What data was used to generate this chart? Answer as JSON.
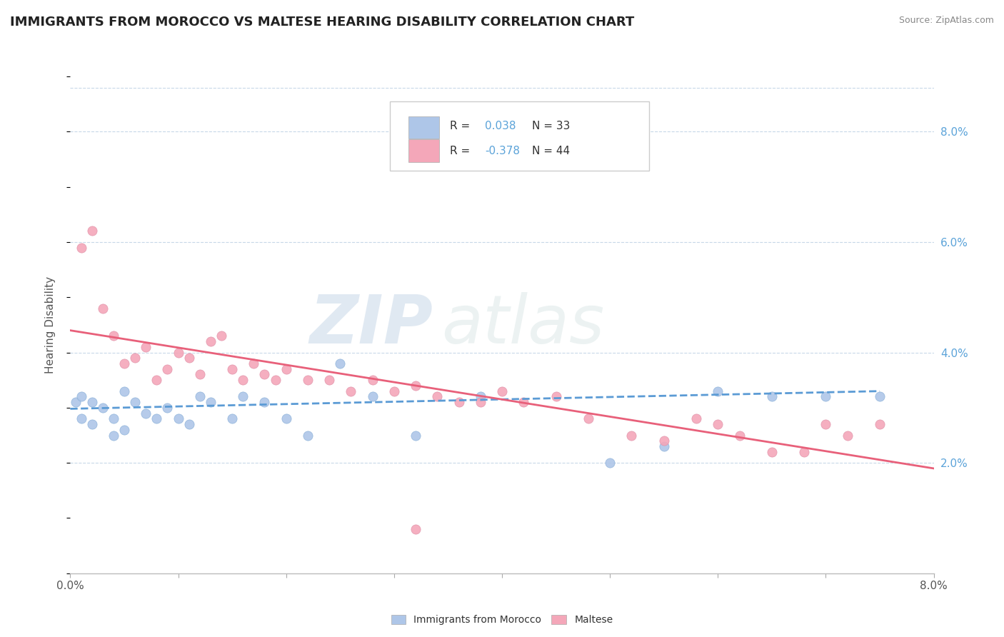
{
  "title": "IMMIGRANTS FROM MOROCCO VS MALTESE HEARING DISABILITY CORRELATION CHART",
  "source_text": "Source: ZipAtlas.com",
  "ylabel": "Hearing Disability",
  "xlim": [
    0.0,
    0.08
  ],
  "ylim": [
    0.0,
    0.09
  ],
  "color_blue": "#aec6e8",
  "color_pink": "#f4a7b9",
  "color_blue_text": "#5ba3d9",
  "color_blue_line": "#5b9bd5",
  "color_pink_line": "#e8607a",
  "watermark_zip": "ZIP",
  "watermark_atlas": "atlas",
  "blue_scatter_x": [
    0.0005,
    0.001,
    0.001,
    0.002,
    0.002,
    0.003,
    0.004,
    0.004,
    0.005,
    0.005,
    0.006,
    0.007,
    0.008,
    0.009,
    0.01,
    0.011,
    0.012,
    0.013,
    0.015,
    0.016,
    0.018,
    0.02,
    0.022,
    0.025,
    0.028,
    0.032,
    0.038,
    0.05,
    0.055,
    0.06,
    0.065,
    0.07,
    0.075
  ],
  "blue_scatter_y": [
    0.031,
    0.032,
    0.028,
    0.031,
    0.027,
    0.03,
    0.028,
    0.025,
    0.033,
    0.026,
    0.031,
    0.029,
    0.028,
    0.03,
    0.028,
    0.027,
    0.032,
    0.031,
    0.028,
    0.032,
    0.031,
    0.028,
    0.025,
    0.038,
    0.032,
    0.025,
    0.032,
    0.02,
    0.023,
    0.033,
    0.032,
    0.032,
    0.032
  ],
  "pink_scatter_x": [
    0.001,
    0.002,
    0.003,
    0.004,
    0.005,
    0.006,
    0.007,
    0.008,
    0.009,
    0.01,
    0.011,
    0.012,
    0.013,
    0.014,
    0.015,
    0.016,
    0.017,
    0.018,
    0.019,
    0.02,
    0.022,
    0.024,
    0.026,
    0.028,
    0.03,
    0.032,
    0.034,
    0.036,
    0.038,
    0.04,
    0.042,
    0.045,
    0.048,
    0.052,
    0.055,
    0.058,
    0.06,
    0.062,
    0.065,
    0.068,
    0.07,
    0.072,
    0.075,
    0.032
  ],
  "pink_scatter_y": [
    0.059,
    0.062,
    0.048,
    0.043,
    0.038,
    0.039,
    0.041,
    0.035,
    0.037,
    0.04,
    0.039,
    0.036,
    0.042,
    0.043,
    0.037,
    0.035,
    0.038,
    0.036,
    0.035,
    0.037,
    0.035,
    0.035,
    0.033,
    0.035,
    0.033,
    0.034,
    0.032,
    0.031,
    0.031,
    0.033,
    0.031,
    0.032,
    0.028,
    0.025,
    0.024,
    0.028,
    0.027,
    0.025,
    0.022,
    0.022,
    0.027,
    0.025,
    0.027,
    0.008
  ],
  "blue_trend_x": [
    0.0,
    0.075
  ],
  "blue_trend_y": [
    0.0298,
    0.033
  ],
  "pink_trend_x": [
    0.0,
    0.08
  ],
  "pink_trend_y": [
    0.044,
    0.019
  ],
  "background_color": "#ffffff",
  "grid_color": "#c8d8e8",
  "title_fontsize": 13,
  "label_fontsize": 11,
  "tick_fontsize": 11
}
